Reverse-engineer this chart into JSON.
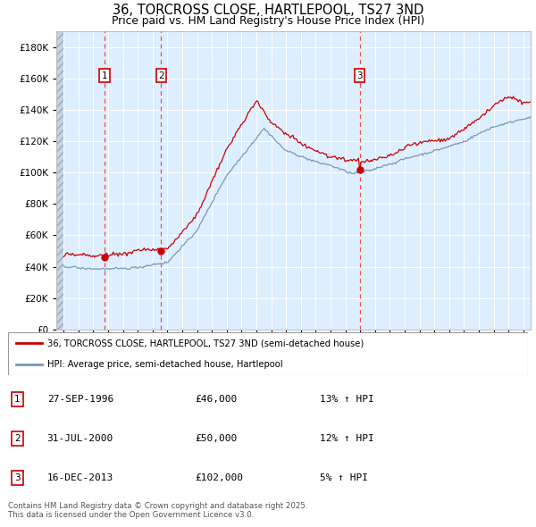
{
  "title": "36, TORCROSS CLOSE, HARTLEPOOL, TS27 3ND",
  "subtitle": "Price paid vs. HM Land Registry's House Price Index (HPI)",
  "legend_line1": "36, TORCROSS CLOSE, HARTLEPOOL, TS27 3ND (semi-detached house)",
  "legend_line2": "HPI: Average price, semi-detached house, Hartlepool",
  "footer": "Contains HM Land Registry data © Crown copyright and database right 2025.\nThis data is licensed under the Open Government Licence v3.0.",
  "sales": [
    {
      "num": 1,
      "date": "27-SEP-1996",
      "price": 46000,
      "hpi_pct": "13%",
      "x_year": 1996.74
    },
    {
      "num": 2,
      "date": "31-JUL-2000",
      "price": 50000,
      "hpi_pct": "12%",
      "x_year": 2000.58
    },
    {
      "num": 3,
      "date": "16-DEC-2013",
      "price": 102000,
      "hpi_pct": "5%",
      "x_year": 2013.96
    }
  ],
  "ylim": [
    0,
    190000
  ],
  "yticks": [
    0,
    20000,
    40000,
    60000,
    80000,
    100000,
    120000,
    140000,
    160000,
    180000
  ],
  "xlim_start": 1993.5,
  "xlim_end": 2025.5,
  "price_line_color": "#cc0000",
  "hpi_line_color": "#7799bb",
  "background_color": "#ddeeff",
  "grid_color": "#ffffff",
  "sale_marker_color": "#cc0000",
  "dashed_line_color": "#ee3333",
  "title_fontsize": 11,
  "subtitle_fontsize": 9
}
